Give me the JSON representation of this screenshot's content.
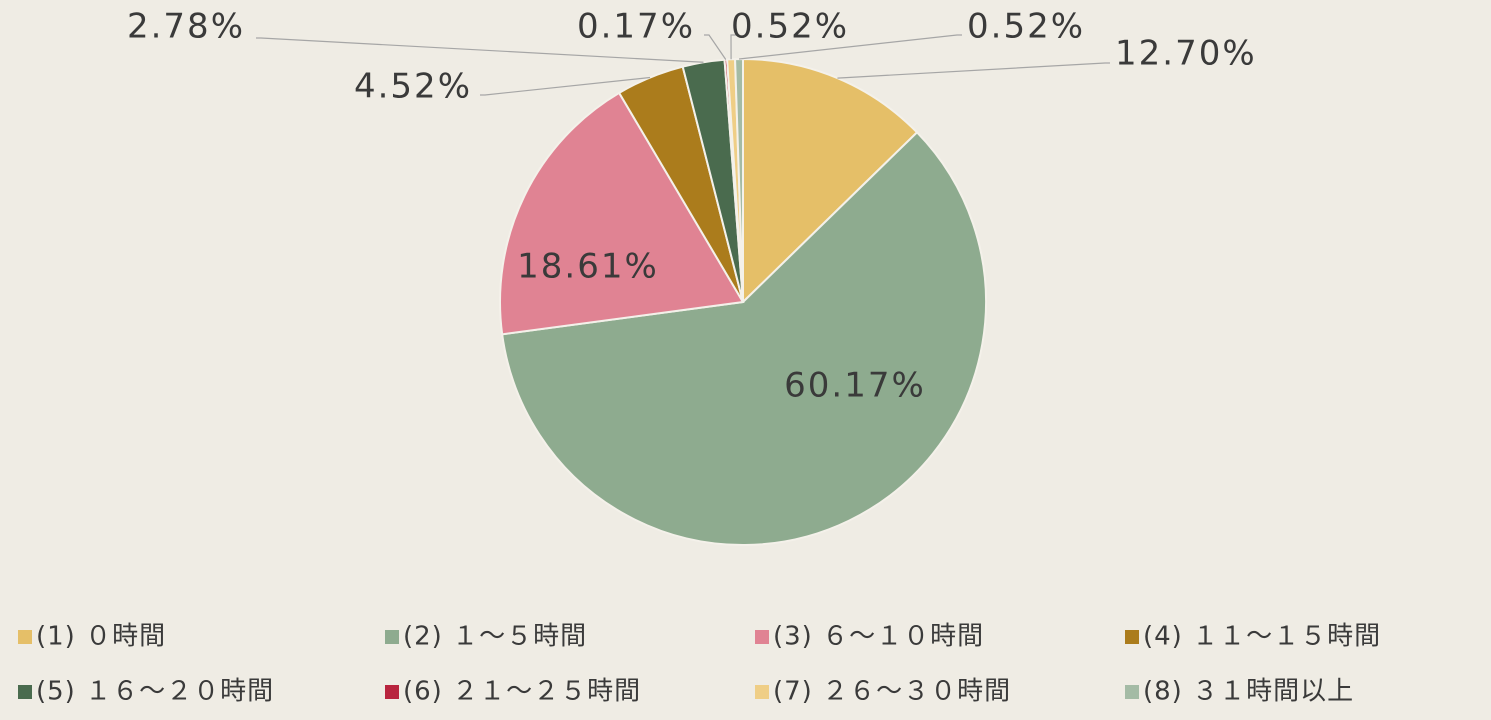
{
  "chart_data": {
    "type": "pie",
    "categories": [
      "(1) ０時間",
      "(2) １～５時間",
      "(3) ６～１０時間",
      "(4) １１～１５時間",
      "(5) １６～２０時間",
      "(6) ２１～２５時間",
      "(7) ２６～３０時間",
      "(8) ３１時間以上"
    ],
    "values": [
      12.7,
      60.17,
      18.61,
      4.52,
      2.78,
      0.17,
      0.52,
      0.52
    ],
    "value_labels": [
      "12.70%",
      "60.17%",
      "18.61%",
      "4.52%",
      "2.78%",
      "0.17%",
      "0.52%",
      "0.52%"
    ],
    "colors": [
      "#e5bf68",
      "#8eab8f",
      "#e08393",
      "#ab7c1c",
      "#4a6b4e",
      "#b8243e",
      "#efce86",
      "#a4bba5"
    ],
    "legend": "bottom"
  }
}
